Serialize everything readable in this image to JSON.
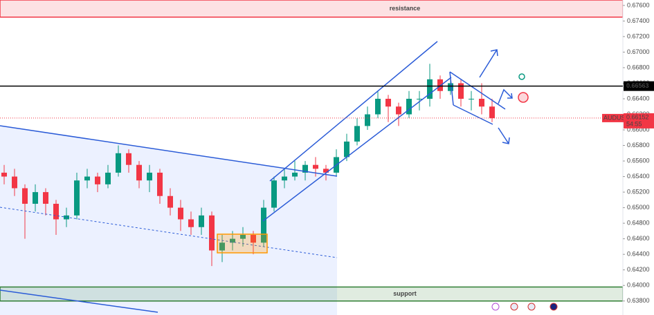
{
  "chart_data": {
    "type": "candlestick",
    "symbol": "AUDUSD",
    "open": [
      0.6545,
      0.654,
      0.6525,
      0.6505,
      0.652,
      0.6505,
      0.6485,
      0.649,
      0.6535,
      0.654,
      0.653,
      0.6545,
      0.657,
      0.6555,
      0.6535,
      0.6545,
      0.6515,
      0.65,
      0.6485,
      0.6475,
      0.649,
      0.6445,
      0.6455,
      0.646,
      0.6465,
      0.6455,
      0.65,
      0.6535,
      0.654,
      0.6545,
      0.6555,
      0.655,
      0.6545,
      0.6565,
      0.6585,
      0.6605,
      0.662,
      0.664,
      0.663,
      0.662,
      0.664,
      0.664,
      0.6665,
      0.665,
      0.666,
      0.664,
      0.664,
      0.663
    ],
    "high": [
      0.6555,
      0.655,
      0.653,
      0.653,
      0.6525,
      0.651,
      0.65,
      0.6545,
      0.655,
      0.6545,
      0.6555,
      0.658,
      0.6575,
      0.656,
      0.6555,
      0.655,
      0.6525,
      0.651,
      0.6495,
      0.65,
      0.6495,
      0.6465,
      0.647,
      0.6475,
      0.647,
      0.651,
      0.654,
      0.655,
      0.656,
      0.656,
      0.6565,
      0.6555,
      0.6575,
      0.6595,
      0.6615,
      0.663,
      0.665,
      0.6645,
      0.6635,
      0.665,
      0.665,
      0.6685,
      0.667,
      0.667,
      0.6665,
      0.665,
      0.666,
      0.664
    ],
    "low": [
      0.653,
      0.6515,
      0.646,
      0.6495,
      0.649,
      0.6465,
      0.6475,
      0.6485,
      0.6525,
      0.652,
      0.6525,
      0.654,
      0.6545,
      0.6525,
      0.652,
      0.6505,
      0.649,
      0.647,
      0.6465,
      0.6465,
      0.6425,
      0.643,
      0.6445,
      0.645,
      0.644,
      0.645,
      0.6495,
      0.6525,
      0.6535,
      0.6535,
      0.654,
      0.6535,
      0.654,
      0.656,
      0.658,
      0.66,
      0.6615,
      0.661,
      0.6605,
      0.6615,
      0.6625,
      0.663,
      0.664,
      0.6645,
      0.663,
      0.6625,
      0.662,
      0.661
    ],
    "close": [
      0.654,
      0.6525,
      0.6505,
      0.652,
      0.6505,
      0.6485,
      0.649,
      0.6535,
      0.654,
      0.653,
      0.6545,
      0.657,
      0.6555,
      0.6535,
      0.6545,
      0.6515,
      0.65,
      0.6485,
      0.6475,
      0.649,
      0.6445,
      0.6455,
      0.646,
      0.6465,
      0.6455,
      0.65,
      0.6535,
      0.654,
      0.6545,
      0.6555,
      0.655,
      0.6545,
      0.6565,
      0.6585,
      0.6605,
      0.662,
      0.664,
      0.663,
      0.662,
      0.664,
      0.664,
      0.6665,
      0.665,
      0.666,
      0.664,
      0.664,
      0.663,
      0.6615
    ],
    "up_color": "#089981",
    "down_color": "#f23645",
    "ylim": [
      0.6362,
      0.6767
    ],
    "yticks": [
      {
        "value": 0.638,
        "label": "0.63800"
      },
      {
        "value": 0.64,
        "label": "0.64000"
      },
      {
        "value": 0.642,
        "label": "0.64200"
      },
      {
        "value": 0.644,
        "label": "0.64400"
      },
      {
        "value": 0.646,
        "label": "0.64600"
      },
      {
        "value": 0.648,
        "label": "0.64800"
      },
      {
        "value": 0.65,
        "label": "0.65000"
      },
      {
        "value": 0.652,
        "label": "0.65200"
      },
      {
        "value": 0.654,
        "label": "0.65400"
      },
      {
        "value": 0.656,
        "label": "0.65600"
      },
      {
        "value": 0.658,
        "label": "0.65800"
      },
      {
        "value": 0.66,
        "label": "0.66000"
      },
      {
        "value": 0.662,
        "label": "0.66200"
      },
      {
        "value": 0.664,
        "label": "0.66400"
      },
      {
        "value": 0.666,
        "label": "0.66600"
      },
      {
        "value": 0.668,
        "label": "0.66800"
      },
      {
        "value": 0.67,
        "label": "0.67000"
      },
      {
        "value": 0.672,
        "label": "0.67200"
      },
      {
        "value": 0.674,
        "label": "0.67400"
      },
      {
        "value": 0.676,
        "label": "0.67600"
      }
    ],
    "zones": [
      {
        "label": "resistance",
        "from": 0.6745,
        "to": 0.6767,
        "color": "#f23645"
      },
      {
        "label": "support",
        "from": 0.638,
        "to": 0.6398,
        "color": "#2e7d32"
      }
    ],
    "hline": {
      "value": 0.66563,
      "label": "0.66563",
      "color": "#000000"
    },
    "last_price": {
      "value": 0.66152,
      "label": "0.66152",
      "countdown": "54:55",
      "color": "#f23645"
    }
  }
}
